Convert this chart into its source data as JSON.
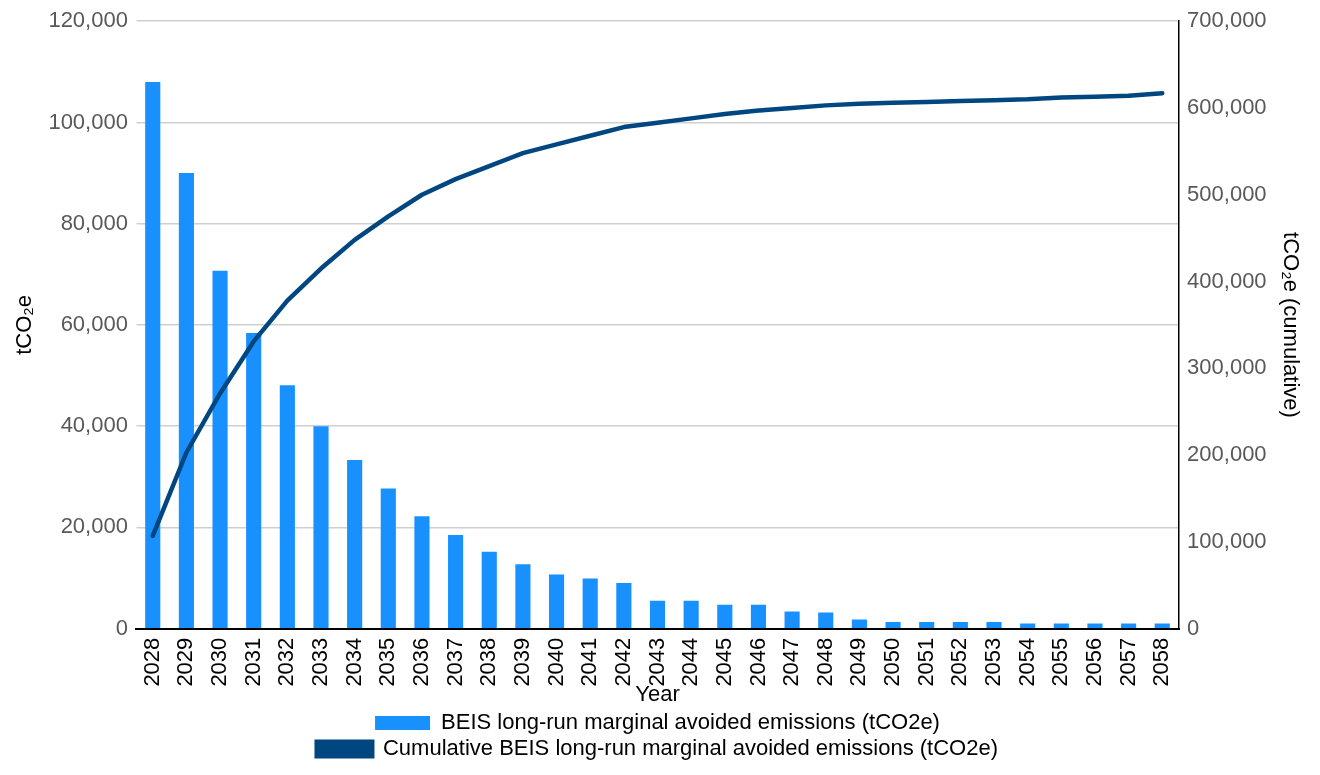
{
  "chart_data": {
    "type": "bar",
    "categories": [
      "2028",
      "2029",
      "2030",
      "2031",
      "2032",
      "2033",
      "2034",
      "2035",
      "2036",
      "2037",
      "2038",
      "2039",
      "2040",
      "2041",
      "2042",
      "2043",
      "2044",
      "2045",
      "2046",
      "2047",
      "2048",
      "2049",
      "2050",
      "2051",
      "2052",
      "2053",
      "2054",
      "2055",
      "2056",
      "2057",
      "2058"
    ],
    "series": [
      {
        "name": "BEIS long-run marginal avoided emissions (tCO2e)",
        "color": "#1891ff",
        "values": [
          108000,
          90000,
          70700,
          58400,
          48100,
          40000,
          33300,
          27700,
          22200,
          18500,
          15200,
          12700,
          10700,
          9900,
          9000,
          5500,
          5500,
          4700,
          4700,
          3400,
          3200,
          1800,
          1300,
          1300,
          1300,
          1300,
          1000,
          1000,
          1000,
          1000,
          1000
        ]
      },
      {
        "name": "Cumulative BEIS long-run marginal avoided emissions (tCO2e)",
        "type": "line",
        "axis": "y2",
        "color": "#004680",
        "values": [
          107000,
          203000,
          271000,
          331000,
          378000,
          415000,
          448000,
          475000,
          500000,
          518000,
          533000,
          548000,
          558000,
          568000,
          578000,
          583000,
          588000,
          593000,
          597000,
          600000,
          603000,
          605000,
          606000,
          607000,
          608000,
          609000,
          610000,
          612000,
          613000,
          614000,
          617000
        ]
      }
    ],
    "xlabel": "Year",
    "ylabel": "tCO₂e",
    "y2label": "tCO₂e (cumulative)",
    "ylim": [
      0,
      120000
    ],
    "yticks": [
      0,
      {
        "value": 20000,
        "label": "20,000"
      },
      {
        "value": 40000,
        "label": "40,000"
      },
      {
        "value": 60000,
        "label": "60,000"
      },
      {
        "value": 80000,
        "label": "80,000"
      },
      {
        "value": 100000,
        "label": "100,000"
      },
      {
        "value": 120000,
        "label": "120,000"
      }
    ],
    "y2lim": [
      0,
      700000
    ],
    "y2ticks": [
      0,
      {
        "value": 100000,
        "label": "100,000"
      },
      {
        "value": 200000,
        "label": "200,000"
      },
      {
        "value": 300000,
        "label": "300,000"
      },
      {
        "value": 400000,
        "label": "400,000"
      },
      {
        "value": 500000,
        "label": "500,000"
      },
      {
        "value": 600000,
        "label": "600,000"
      },
      {
        "value": 700000,
        "label": "700,000"
      }
    ],
    "grid": "y",
    "legend": "bottom",
    "marker": "none",
    "line_style": "solid"
  }
}
